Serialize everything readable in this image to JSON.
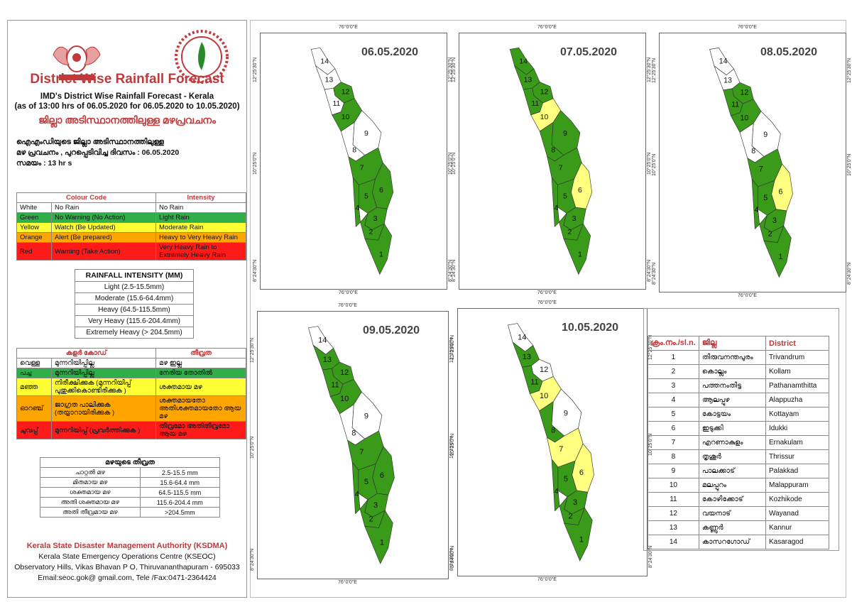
{
  "colors": {
    "white": "#ffffff",
    "green": "#3a9a1a",
    "yellow": "#ffff80",
    "orange": "#ffa500",
    "red": "#ff1a1a",
    "title_red": "#c0393b"
  },
  "header": {
    "title": "District Wise Rainfall Forecast",
    "subtitle_1": "IMD's District Wise Rainfall Forecast - Kerala",
    "subtitle_2": "(as of 13:00 hrs of 06.05.2020  for 06.05.2020  to 10.05.2020)",
    "mal_title": "ജില്ലാ അടിസ്ഥാനത്തിലുള്ള മഴപ്രവചനം",
    "mal_line_1": "ഐഎംഡിയുടെ ജില്ലാ    അടിസ്ഥാനത്തിലുള്ള",
    "mal_line_2": "മഴ പ്രവചനം  , പുറപ്പെടിവിച്ച      ദിവസം : 06.05.2020",
    "mal_line_3": "സമയം : 13   hr s"
  },
  "colour_code": {
    "header_code": "Colour Code",
    "header_intensity": "Intensity",
    "rows": [
      {
        "colour": "White",
        "code": "No Rain",
        "intensity": "No Rain",
        "bg": "#ffffff"
      },
      {
        "colour": "Green",
        "code": "No Warning (No Action)",
        "intensity": "Light Rain",
        "bg": "#2fae4a"
      },
      {
        "colour": "Yellow",
        "code": "Watch (Be Updated)",
        "intensity": "Moderate Rain",
        "bg": "#ffff33"
      },
      {
        "colour": "Orange",
        "code": "Alert (Be prepared)",
        "intensity": "Heavy to Very Heavy Rain",
        "bg": "#ffa500"
      },
      {
        "colour": "Red",
        "code": "Warning (Take Action)",
        "intensity": "Very Heavy Rain to Extremely Heavy Rain",
        "bg": "#ff1a1a"
      }
    ]
  },
  "rainfall_mm": {
    "title": "RAINFALL INTENSITY (MM)",
    "rows": [
      "Light (2.5-15.5mm)",
      "Moderate (15.6-64.4mm)",
      "Heavy (64.5-115.5mm)",
      "Very Heavy (115.6-204.4mm)",
      "Extremely Heavy (> 204.5mm)"
    ]
  },
  "mal_code": {
    "header_code": "കളർ കോഡ്",
    "header_intensity": "തീവ്രത",
    "rows": [
      {
        "colour": "വെള്ള",
        "code": "മുന്നറിയിപ്പില്ല",
        "intensity": "മഴ ഇല്ല",
        "bg": "#ffffff"
      },
      {
        "colour": "പച്ച",
        "code": "മുന്നറിയിപ്പില്ല",
        "intensity": "നേരിയ തോതിൽ",
        "bg": "#2fae4a"
      },
      {
        "colour": "മഞ്ഞ",
        "code": "നിരീക്ഷിക്കുക (മുന്നറിയിപ്പ് പുതുക്കികൊണ്ടിരിക്കുക )",
        "intensity": "ശക്തമായ മഴ",
        "bg": "#ffff33"
      },
      {
        "colour": "ഓറഞ്ച്",
        "code": "ജാഗ്രത പാലിക്കുക (തയ്യാറായിരിക്കുക )",
        "intensity": "ശക്തമായതോ അതിശക്തമായതോ ആയ മഴ",
        "bg": "#ffa500"
      },
      {
        "colour": "ചുവപ്പ്",
        "code": "മുന്നറിയിപ്പ് (പ്രവർത്തിക്കുക )",
        "intensity": "തീവ്രമോ അതിതീവ്രമോ ആയ മഴ",
        "bg": "#ff1a1a"
      }
    ]
  },
  "mal_mm": {
    "title": "മഴയുടെ തീവ്രത",
    "rows": [
      {
        "label": "ചാറ്റൽ മഴ",
        "range": "2.5-15.5 mm"
      },
      {
        "label": "മിതമായ മഴ",
        "range": "15.6-64.4 mm"
      },
      {
        "label": "ശക്തമായ മഴ",
        "range": "64.5-115.5 mm"
      },
      {
        "label": "അതി ശക്തമായ മഴ",
        "range": "115.6-204.4 mm"
      },
      {
        "label": "അതി തീവ്രമായ മഴ",
        "range": ">204.5mm"
      }
    ]
  },
  "org": {
    "name": "Kerala State Disaster Management Authority (KSDMA)",
    "line_1": "Kerala State Emergency Operations Centre (KSEOC)",
    "line_2": "Observatory Hills, Vikas Bhavan P O, Thiruvananthapuram - 695033",
    "line_3": "Email:seoc.gok@ gmail.com, Tele /Fax:0471-2364424"
  },
  "axis": {
    "lon": "76°0'0\"E",
    "lat_top": "12°25'30\"N",
    "lat_mid": "10°25'0\"N",
    "lat_bot": "8°24'30\"N"
  },
  "maps": [
    {
      "date": "06.05.2020",
      "colors": {
        "1": "g",
        "2": "g",
        "3": "g",
        "4": "g",
        "5": "g",
        "6": "g",
        "7": "g",
        "8": "w",
        "9": "w",
        "10": "g",
        "11": "w",
        "12": "g",
        "13": "w",
        "14": "w"
      }
    },
    {
      "date": "07.05.2020",
      "colors": {
        "1": "g",
        "2": "g",
        "3": "g",
        "4": "g",
        "5": "g",
        "6": "y",
        "7": "g",
        "8": "g",
        "9": "g",
        "10": "y",
        "11": "g",
        "12": "g",
        "13": "g",
        "14": "g"
      }
    },
    {
      "date": "08.05.2020",
      "colors": {
        "1": "g",
        "2": "g",
        "3": "g",
        "4": "g",
        "5": "g",
        "6": "y",
        "7": "g",
        "8": "w",
        "9": "w",
        "10": "g",
        "11": "g",
        "12": "g",
        "13": "w",
        "14": "w"
      }
    },
    {
      "date": "09.05.2020",
      "colors": {
        "1": "g",
        "2": "g",
        "3": "g",
        "4": "g",
        "5": "g",
        "6": "g",
        "7": "g",
        "8": "w",
        "9": "w",
        "10": "g",
        "11": "g",
        "12": "g",
        "13": "g",
        "14": "w"
      }
    },
    {
      "date": "10.05.2020",
      "colors": {
        "1": "g",
        "2": "g",
        "3": "g",
        "4": "g",
        "5": "g",
        "6": "y",
        "7": "y",
        "8": "g",
        "9": "w",
        "10": "y",
        "11": "g",
        "12": "w",
        "13": "g",
        "14": "w"
      }
    }
  ],
  "districts": {
    "headers": [
      "ക്രം.നം./sl.n.",
      "ജില്ല",
      "District"
    ],
    "rows": [
      [
        "1",
        "തിരുവനന്തപുരം",
        "Trivandrum"
      ],
      [
        "2",
        "കൊല്ലം",
        "Kollam"
      ],
      [
        "3",
        "പത്തനംതിട്ട",
        "Pathanamthitta"
      ],
      [
        "4",
        "ആലപ്പുഴ",
        "Alappuzha"
      ],
      [
        "5",
        "കോട്ടയം",
        "Kottayam"
      ],
      [
        "6",
        "ഇടുക്കി",
        "Idukki"
      ],
      [
        "7",
        "എറണാകുളം",
        "Ernakulam"
      ],
      [
        "8",
        "തൃശൂർ",
        "Thrissur"
      ],
      [
        "9",
        "പാലക്കാട്",
        "Palakkad"
      ],
      [
        "10",
        "മലപ്പുറം",
        "Malappuram"
      ],
      [
        "11",
        "കോഴിക്കോട്",
        "Kozhikode"
      ],
      [
        "12",
        "വയനാട്",
        "Wayanad"
      ],
      [
        "13",
        "കണ്ണൂർ",
        "Kannur"
      ],
      [
        "14",
        "കാസറഗോഡ്",
        "Kasaragod"
      ]
    ]
  }
}
